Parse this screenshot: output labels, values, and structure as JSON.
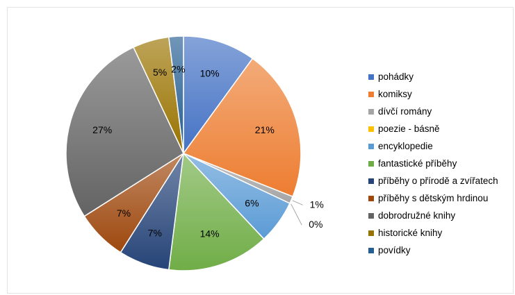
{
  "chart_data": {
    "type": "pie",
    "title": "",
    "start_angle_deg": 0,
    "direction": "clockwise",
    "legend_position": "right",
    "slices": [
      {
        "name": "pohádky",
        "value": 10,
        "label": "10%",
        "color": "#4472C4"
      },
      {
        "name": "komiksy",
        "value": 21,
        "label": "21%",
        "color": "#ED7D31"
      },
      {
        "name": "dívčí romány",
        "value": 1,
        "label": "1%",
        "color": "#A5A5A5"
      },
      {
        "name": "poezie - básně",
        "value": 0,
        "label": "0%",
        "color": "#FFC000"
      },
      {
        "name": "encyklopedie",
        "value": 6,
        "label": "6%",
        "color": "#5B9BD5"
      },
      {
        "name": "fantastické příběhy",
        "value": 14,
        "label": "14%",
        "color": "#70AD47"
      },
      {
        "name": "příběhy o přírodě a zvířatech",
        "value": 7,
        "label": "7%",
        "color": "#264478"
      },
      {
        "name": "příběhy s dětským hrdinou",
        "value": 7,
        "label": "7%",
        "color": "#9E480E"
      },
      {
        "name": "dobrodružné knihy",
        "value": 27,
        "label": "27%",
        "color": "#636363"
      },
      {
        "name": "historické knihy",
        "value": 5,
        "label": "5%",
        "color": "#997300"
      },
      {
        "name": "povídky",
        "value": 2,
        "label": "2%",
        "color": "#255E91"
      }
    ]
  }
}
